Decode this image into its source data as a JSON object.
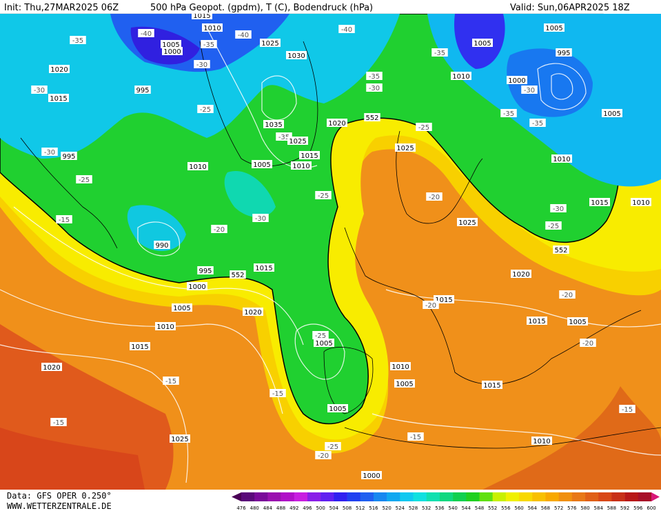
{
  "header": {
    "init": "Init: Thu,27MAR2025 06Z",
    "title": "500 hPa Geopot. (gpdm), T (C), Bodendruck (hPa)",
    "valid": "Valid: Sun,06APR2025 18Z"
  },
  "footer": {
    "data": "Data: GFS OPER 0.250°",
    "site": "WWW.WETTERZENTRALE.DE"
  },
  "scale": {
    "labels": [
      476,
      480,
      484,
      488,
      492,
      496,
      500,
      504,
      508,
      512,
      516,
      520,
      524,
      528,
      532,
      536,
      540,
      544,
      548,
      552,
      556,
      560,
      564,
      568,
      572,
      576,
      580,
      584,
      588,
      592,
      596,
      600
    ],
    "colors": [
      "#4a0055",
      "#5a0a7a",
      "#7a0a9a",
      "#9a10b0",
      "#b010c8",
      "#c81ee0",
      "#8a1ee8",
      "#6020f0",
      "#3020f0",
      "#2040f0",
      "#2060f0",
      "#1888f0",
      "#10a8f0",
      "#10c8f0",
      "#10e0e0",
      "#10e0b0",
      "#10d880",
      "#10d050",
      "#20d020",
      "#60e010",
      "#c8f000",
      "#f0f000",
      "#f8d800",
      "#f8c000",
      "#f8a800",
      "#f09010",
      "#e87818",
      "#e06018",
      "#d84818",
      "#c83018",
      "#b81818",
      "#a81028",
      "#d81878"
    ]
  },
  "map_labels": [
    "1015",
    "1010",
    "-40",
    "1005",
    "1000",
    "-35",
    "-35",
    "-30",
    "1020",
    "-30",
    "1015",
    "995",
    "-40",
    "1025",
    "1030",
    "-40",
    "1005",
    "1005",
    "-35",
    "995",
    "1010",
    "1000",
    "-30",
    "-35",
    "-30",
    "-25",
    "552",
    "1020",
    "-25",
    "1005",
    "-35",
    "-35",
    "1035",
    "-35",
    "1025",
    "1025",
    "-30",
    "995",
    "1010",
    "1015",
    "1005",
    "1010",
    "1010",
    "-25",
    "-25",
    "-20",
    "1015",
    "1010",
    "-30",
    "-15",
    "-30",
    "1025",
    "-25",
    "-20",
    "990",
    "552",
    "995",
    "552",
    "1015",
    "1020",
    "1000",
    "-20",
    "1015",
    "-20",
    "1005",
    "1020",
    "1015",
    "1005",
    "1010",
    "-25",
    "-20",
    "1005",
    "1015",
    "1010",
    "1020",
    "-15",
    "1005",
    "1015",
    "-15",
    "1005",
    "-15",
    "-15",
    "-15",
    "1025",
    "1010",
    "-25",
    "-20",
    "1000"
  ]
}
